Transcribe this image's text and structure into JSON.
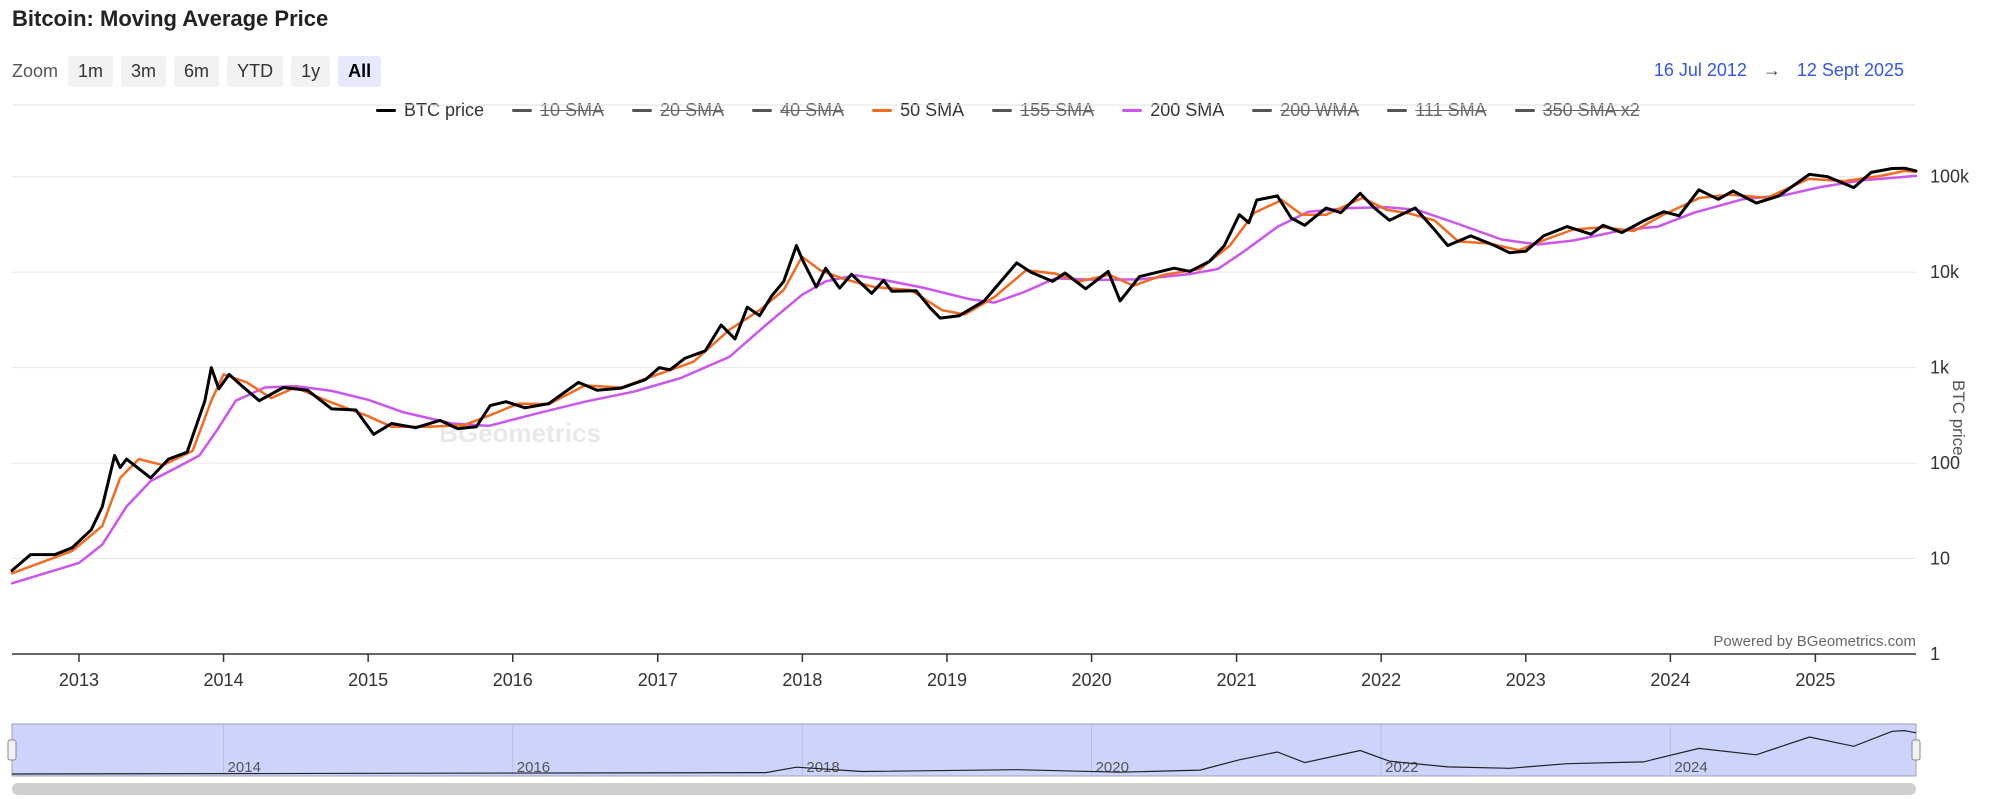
{
  "title": "Bitcoin: Moving Average Price",
  "zoom": {
    "label": "Zoom",
    "buttons": [
      "1m",
      "3m",
      "6m",
      "YTD",
      "1y",
      "All"
    ],
    "active": "All"
  },
  "range": {
    "from": "16 Jul 2012",
    "arrow": "→",
    "to": "12 Sept 2025"
  },
  "credits": "Powered by BGeometrics.com",
  "watermark": "BGeometrics",
  "colors": {
    "btc": "#000000",
    "sma50": "#f26b21",
    "sma200": "#cc55ee",
    "hidden": "#555555",
    "navigator_fill": "#cdd3fb",
    "accent": "#3355ee"
  },
  "legend": [
    {
      "label": "BTC price",
      "color": "#000000",
      "visible": true
    },
    {
      "label": "10 SMA",
      "color": "#555555",
      "visible": false
    },
    {
      "label": "20 SMA",
      "color": "#555555",
      "visible": false
    },
    {
      "label": "40 SMA",
      "color": "#555555",
      "visible": false
    },
    {
      "label": "50 SMA",
      "color": "#f26b21",
      "visible": true
    },
    {
      "label": "155 SMA",
      "color": "#555555",
      "visible": false
    },
    {
      "label": "200 SMA",
      "color": "#cc55ee",
      "visible": true
    },
    {
      "label": "200 WMA",
      "color": "#555555",
      "visible": false
    },
    {
      "label": "111 SMA",
      "color": "#555555",
      "visible": false
    },
    {
      "label": "350 SMA x2",
      "color": "#555555",
      "visible": false
    }
  ],
  "chart_data": {
    "type": "line",
    "title": "Bitcoin: Moving Average Price",
    "ylabel": "BTC price",
    "yscale": "log",
    "ylim": [
      1,
      200000
    ],
    "xlim": [
      "2012-07-16",
      "2025-09-12"
    ],
    "ytick_labels": [
      "1",
      "10",
      "100",
      "1k",
      "10k",
      "100k"
    ],
    "ytick_values": [
      1,
      10,
      100,
      1000,
      10000,
      100000
    ],
    "xtick_labels": [
      "2013",
      "2014",
      "2015",
      "2016",
      "2017",
      "2018",
      "2019",
      "2020",
      "2021",
      "2022",
      "2023",
      "2024",
      "2025"
    ],
    "navigator_labels": [
      "2014",
      "2016",
      "2018",
      "2020",
      "2022",
      "2024"
    ],
    "series": [
      {
        "name": "BTC price",
        "points": [
          [
            "2012-07-16",
            7.5
          ],
          [
            "2012-09-01",
            11
          ],
          [
            "2012-11-01",
            11
          ],
          [
            "2012-12-15",
            13
          ],
          [
            "2013-02-01",
            20
          ],
          [
            "2013-03-01",
            35
          ],
          [
            "2013-04-01",
            120
          ],
          [
            "2013-04-15",
            90
          ],
          [
            "2013-05-01",
            110
          ],
          [
            "2013-07-01",
            70
          ],
          [
            "2013-08-15",
            110
          ],
          [
            "2013-10-01",
            130
          ],
          [
            "2013-11-15",
            450
          ],
          [
            "2013-12-01",
            1000
          ],
          [
            "2013-12-20",
            600
          ],
          [
            "2014-01-15",
            850
          ],
          [
            "2014-02-15",
            650
          ],
          [
            "2014-04-01",
            450
          ],
          [
            "2014-06-01",
            620
          ],
          [
            "2014-08-01",
            580
          ],
          [
            "2014-10-01",
            370
          ],
          [
            "2014-12-01",
            360
          ],
          [
            "2015-01-15",
            200
          ],
          [
            "2015-03-01",
            260
          ],
          [
            "2015-05-01",
            235
          ],
          [
            "2015-07-01",
            280
          ],
          [
            "2015-08-15",
            230
          ],
          [
            "2015-10-01",
            240
          ],
          [
            "2015-11-05",
            400
          ],
          [
            "2015-12-15",
            440
          ],
          [
            "2016-02-01",
            380
          ],
          [
            "2016-04-01",
            420
          ],
          [
            "2016-06-15",
            700
          ],
          [
            "2016-08-01",
            580
          ],
          [
            "2016-10-01",
            610
          ],
          [
            "2016-12-01",
            750
          ],
          [
            "2017-01-05",
            1000
          ],
          [
            "2017-02-01",
            950
          ],
          [
            "2017-03-10",
            1250
          ],
          [
            "2017-05-01",
            1500
          ],
          [
            "2017-06-10",
            2800
          ],
          [
            "2017-07-15",
            2000
          ],
          [
            "2017-08-15",
            4300
          ],
          [
            "2017-09-15",
            3500
          ],
          [
            "2017-10-15",
            5600
          ],
          [
            "2017-11-15",
            8000
          ],
          [
            "2017-12-17",
            19000
          ],
          [
            "2018-01-01",
            13500
          ],
          [
            "2018-02-05",
            7000
          ],
          [
            "2018-03-01",
            11000
          ],
          [
            "2018-04-05",
            6800
          ],
          [
            "2018-05-05",
            9500
          ],
          [
            "2018-06-25",
            6000
          ],
          [
            "2018-07-25",
            8200
          ],
          [
            "2018-08-15",
            6300
          ],
          [
            "2018-10-15",
            6400
          ],
          [
            "2018-11-20",
            4200
          ],
          [
            "2018-12-15",
            3300
          ],
          [
            "2019-02-01",
            3500
          ],
          [
            "2019-04-05",
            5000
          ],
          [
            "2019-06-26",
            12500
          ],
          [
            "2019-08-01",
            10000
          ],
          [
            "2019-09-25",
            8000
          ],
          [
            "2019-10-26",
            9800
          ],
          [
            "2019-12-17",
            6700
          ],
          [
            "2020-02-12",
            10200
          ],
          [
            "2020-03-13",
            5000
          ],
          [
            "2020-05-01",
            9000
          ],
          [
            "2020-07-27",
            11000
          ],
          [
            "2020-09-05",
            10200
          ],
          [
            "2020-10-25",
            13000
          ],
          [
            "2020-12-01",
            19000
          ],
          [
            "2021-01-08",
            40000
          ],
          [
            "2021-02-01",
            33000
          ],
          [
            "2021-02-21",
            57000
          ],
          [
            "2021-04-14",
            63000
          ],
          [
            "2021-05-19",
            37000
          ],
          [
            "2021-06-22",
            31000
          ],
          [
            "2021-08-15",
            47000
          ],
          [
            "2021-09-21",
            42000
          ],
          [
            "2021-11-09",
            67000
          ],
          [
            "2021-12-15",
            47000
          ],
          [
            "2022-01-22",
            35000
          ],
          [
            "2022-03-28",
            47000
          ],
          [
            "2022-05-12",
            29000
          ],
          [
            "2022-06-18",
            19000
          ],
          [
            "2022-08-15",
            24000
          ],
          [
            "2022-10-15",
            19000
          ],
          [
            "2022-11-21",
            16000
          ],
          [
            "2023-01-01",
            16600
          ],
          [
            "2023-02-15",
            24000
          ],
          [
            "2023-04-15",
            30000
          ],
          [
            "2023-06-15",
            25000
          ],
          [
            "2023-07-15",
            31000
          ],
          [
            "2023-09-01",
            26000
          ],
          [
            "2023-10-25",
            34500
          ],
          [
            "2023-12-15",
            43000
          ],
          [
            "2024-01-23",
            39000
          ],
          [
            "2024-03-13",
            73000
          ],
          [
            "2024-05-01",
            58000
          ],
          [
            "2024-06-07",
            71000
          ],
          [
            "2024-08-05",
            53000
          ],
          [
            "2024-10-01",
            63000
          ],
          [
            "2024-12-17",
            106000
          ],
          [
            "2025-02-01",
            100000
          ],
          [
            "2025-04-08",
            77000
          ],
          [
            "2025-05-22",
            111000
          ],
          [
            "2025-07-14",
            122000
          ],
          [
            "2025-08-14",
            123000
          ],
          [
            "2025-09-12",
            115000
          ]
        ]
      },
      {
        "name": "50 SMA",
        "points": [
          [
            "2012-07-16",
            7
          ],
          [
            "2012-12-15",
            12
          ],
          [
            "2013-03-01",
            22
          ],
          [
            "2013-04-15",
            70
          ],
          [
            "2013-06-01",
            110
          ],
          [
            "2013-08-01",
            95
          ],
          [
            "2013-10-15",
            135
          ],
          [
            "2013-12-01",
            450
          ],
          [
            "2014-01-01",
            850
          ],
          [
            "2014-03-01",
            700
          ],
          [
            "2014-05-01",
            480
          ],
          [
            "2014-07-01",
            620
          ],
          [
            "2014-10-01",
            430
          ],
          [
            "2015-01-01",
            310
          ],
          [
            "2015-03-01",
            240
          ],
          [
            "2015-06-01",
            240
          ],
          [
            "2015-09-01",
            250
          ],
          [
            "2015-11-15",
            330
          ],
          [
            "2016-01-15",
            420
          ],
          [
            "2016-04-01",
            415
          ],
          [
            "2016-07-01",
            650
          ],
          [
            "2016-10-01",
            620
          ],
          [
            "2017-01-01",
            850
          ],
          [
            "2017-04-01",
            1150
          ],
          [
            "2017-07-01",
            2500
          ],
          [
            "2017-09-15",
            4000
          ],
          [
            "2017-11-15",
            6500
          ],
          [
            "2017-12-31",
            14500
          ],
          [
            "2018-02-15",
            10500
          ],
          [
            "2018-04-15",
            8500
          ],
          [
            "2018-07-01",
            7000
          ],
          [
            "2018-10-01",
            6500
          ],
          [
            "2018-12-20",
            4000
          ],
          [
            "2019-02-15",
            3600
          ],
          [
            "2019-05-01",
            5500
          ],
          [
            "2019-07-20",
            10500
          ],
          [
            "2019-09-30",
            9700
          ],
          [
            "2019-12-01",
            8000
          ],
          [
            "2020-02-15",
            9400
          ],
          [
            "2020-04-15",
            7200
          ],
          [
            "2020-07-01",
            9400
          ],
          [
            "2020-10-01",
            10800
          ],
          [
            "2020-12-15",
            19000
          ],
          [
            "2021-02-15",
            42000
          ],
          [
            "2021-04-25",
            57000
          ],
          [
            "2021-06-15",
            40000
          ],
          [
            "2021-08-15",
            40000
          ],
          [
            "2021-11-15",
            60000
          ],
          [
            "2022-01-15",
            45000
          ],
          [
            "2022-03-15",
            41000
          ],
          [
            "2022-05-15",
            35000
          ],
          [
            "2022-07-15",
            21000
          ],
          [
            "2022-10-01",
            20000
          ],
          [
            "2022-12-15",
            17000
          ],
          [
            "2023-02-20",
            22000
          ],
          [
            "2023-05-01",
            28000
          ],
          [
            "2023-07-15",
            29500
          ],
          [
            "2023-10-01",
            27000
          ],
          [
            "2023-12-15",
            40000
          ],
          [
            "2024-03-15",
            60000
          ],
          [
            "2024-06-01",
            65000
          ],
          [
            "2024-09-01",
            60000
          ],
          [
            "2024-12-15",
            95000
          ],
          [
            "2025-03-15",
            90000
          ],
          [
            "2025-06-15",
            102000
          ],
          [
            "2025-08-15",
            115000
          ],
          [
            "2025-09-12",
            113000
          ]
        ]
      },
      {
        "name": "200 SMA",
        "points": [
          [
            "2012-07-16",
            5.5
          ],
          [
            "2013-01-01",
            9
          ],
          [
            "2013-03-01",
            14
          ],
          [
            "2013-05-01",
            35
          ],
          [
            "2013-07-01",
            65
          ],
          [
            "2013-09-01",
            88
          ],
          [
            "2013-11-01",
            120
          ],
          [
            "2013-12-15",
            220
          ],
          [
            "2014-02-01",
            450
          ],
          [
            "2014-04-15",
            620
          ],
          [
            "2014-07-01",
            640
          ],
          [
            "2014-10-01",
            570
          ],
          [
            "2015-01-01",
            460
          ],
          [
            "2015-04-01",
            340
          ],
          [
            "2015-08-01",
            260
          ],
          [
            "2015-11-01",
            245
          ],
          [
            "2016-03-01",
            330
          ],
          [
            "2016-07-01",
            440
          ],
          [
            "2016-11-01",
            560
          ],
          [
            "2017-03-01",
            780
          ],
          [
            "2017-07-01",
            1300
          ],
          [
            "2017-10-01",
            2800
          ],
          [
            "2017-12-31",
            5800
          ],
          [
            "2018-03-01",
            8000
          ],
          [
            "2018-05-15",
            9300
          ],
          [
            "2018-08-01",
            8200
          ],
          [
            "2018-11-01",
            6900
          ],
          [
            "2019-03-01",
            5200
          ],
          [
            "2019-05-01",
            4800
          ],
          [
            "2019-07-15",
            6200
          ],
          [
            "2019-10-01",
            8600
          ],
          [
            "2020-01-15",
            8300
          ],
          [
            "2020-05-01",
            8400
          ],
          [
            "2020-09-01",
            9500
          ],
          [
            "2020-11-15",
            10800
          ],
          [
            "2021-01-15",
            16000
          ],
          [
            "2021-04-15",
            30000
          ],
          [
            "2021-07-01",
            43000
          ],
          [
            "2021-10-15",
            47000
          ],
          [
            "2022-01-15",
            48000
          ],
          [
            "2022-04-01",
            45000
          ],
          [
            "2022-07-15",
            32000
          ],
          [
            "2022-11-01",
            22000
          ],
          [
            "2023-02-01",
            19500
          ],
          [
            "2023-05-01",
            21500
          ],
          [
            "2023-09-01",
            27500
          ],
          [
            "2023-12-01",
            30000
          ],
          [
            "2024-03-01",
            42000
          ],
          [
            "2024-07-01",
            58000
          ],
          [
            "2024-10-15",
            64000
          ],
          [
            "2025-01-15",
            78000
          ],
          [
            "2025-05-01",
            92000
          ],
          [
            "2025-09-12",
            102000
          ]
        ]
      }
    ],
    "navigator": {
      "series": "BTC price",
      "points": [
        [
          "2012-07-16",
          0
        ],
        [
          "2017-10-01",
          4000
        ],
        [
          "2017-12-17",
          19000
        ],
        [
          "2018-06-01",
          7000
        ],
        [
          "2019-06-26",
          12000
        ],
        [
          "2020-03-13",
          5000
        ],
        [
          "2020-10-01",
          11000
        ],
        [
          "2021-01-08",
          40000
        ],
        [
          "2021-04-14",
          62000
        ],
        [
          "2021-06-22",
          32000
        ],
        [
          "2021-11-09",
          66000
        ],
        [
          "2022-01-22",
          36000
        ],
        [
          "2022-06-18",
          20000
        ],
        [
          "2022-11-21",
          16000
        ],
        [
          "2023-04-15",
          29000
        ],
        [
          "2023-10-25",
          34000
        ],
        [
          "2024-03-13",
          72000
        ],
        [
          "2024-08-05",
          54000
        ],
        [
          "2024-12-17",
          104000
        ],
        [
          "2025-04-08",
          78000
        ],
        [
          "2025-07-14",
          120000
        ],
        [
          "2025-08-14",
          122000
        ],
        [
          "2025-09-12",
          116000
        ]
      ]
    }
  }
}
